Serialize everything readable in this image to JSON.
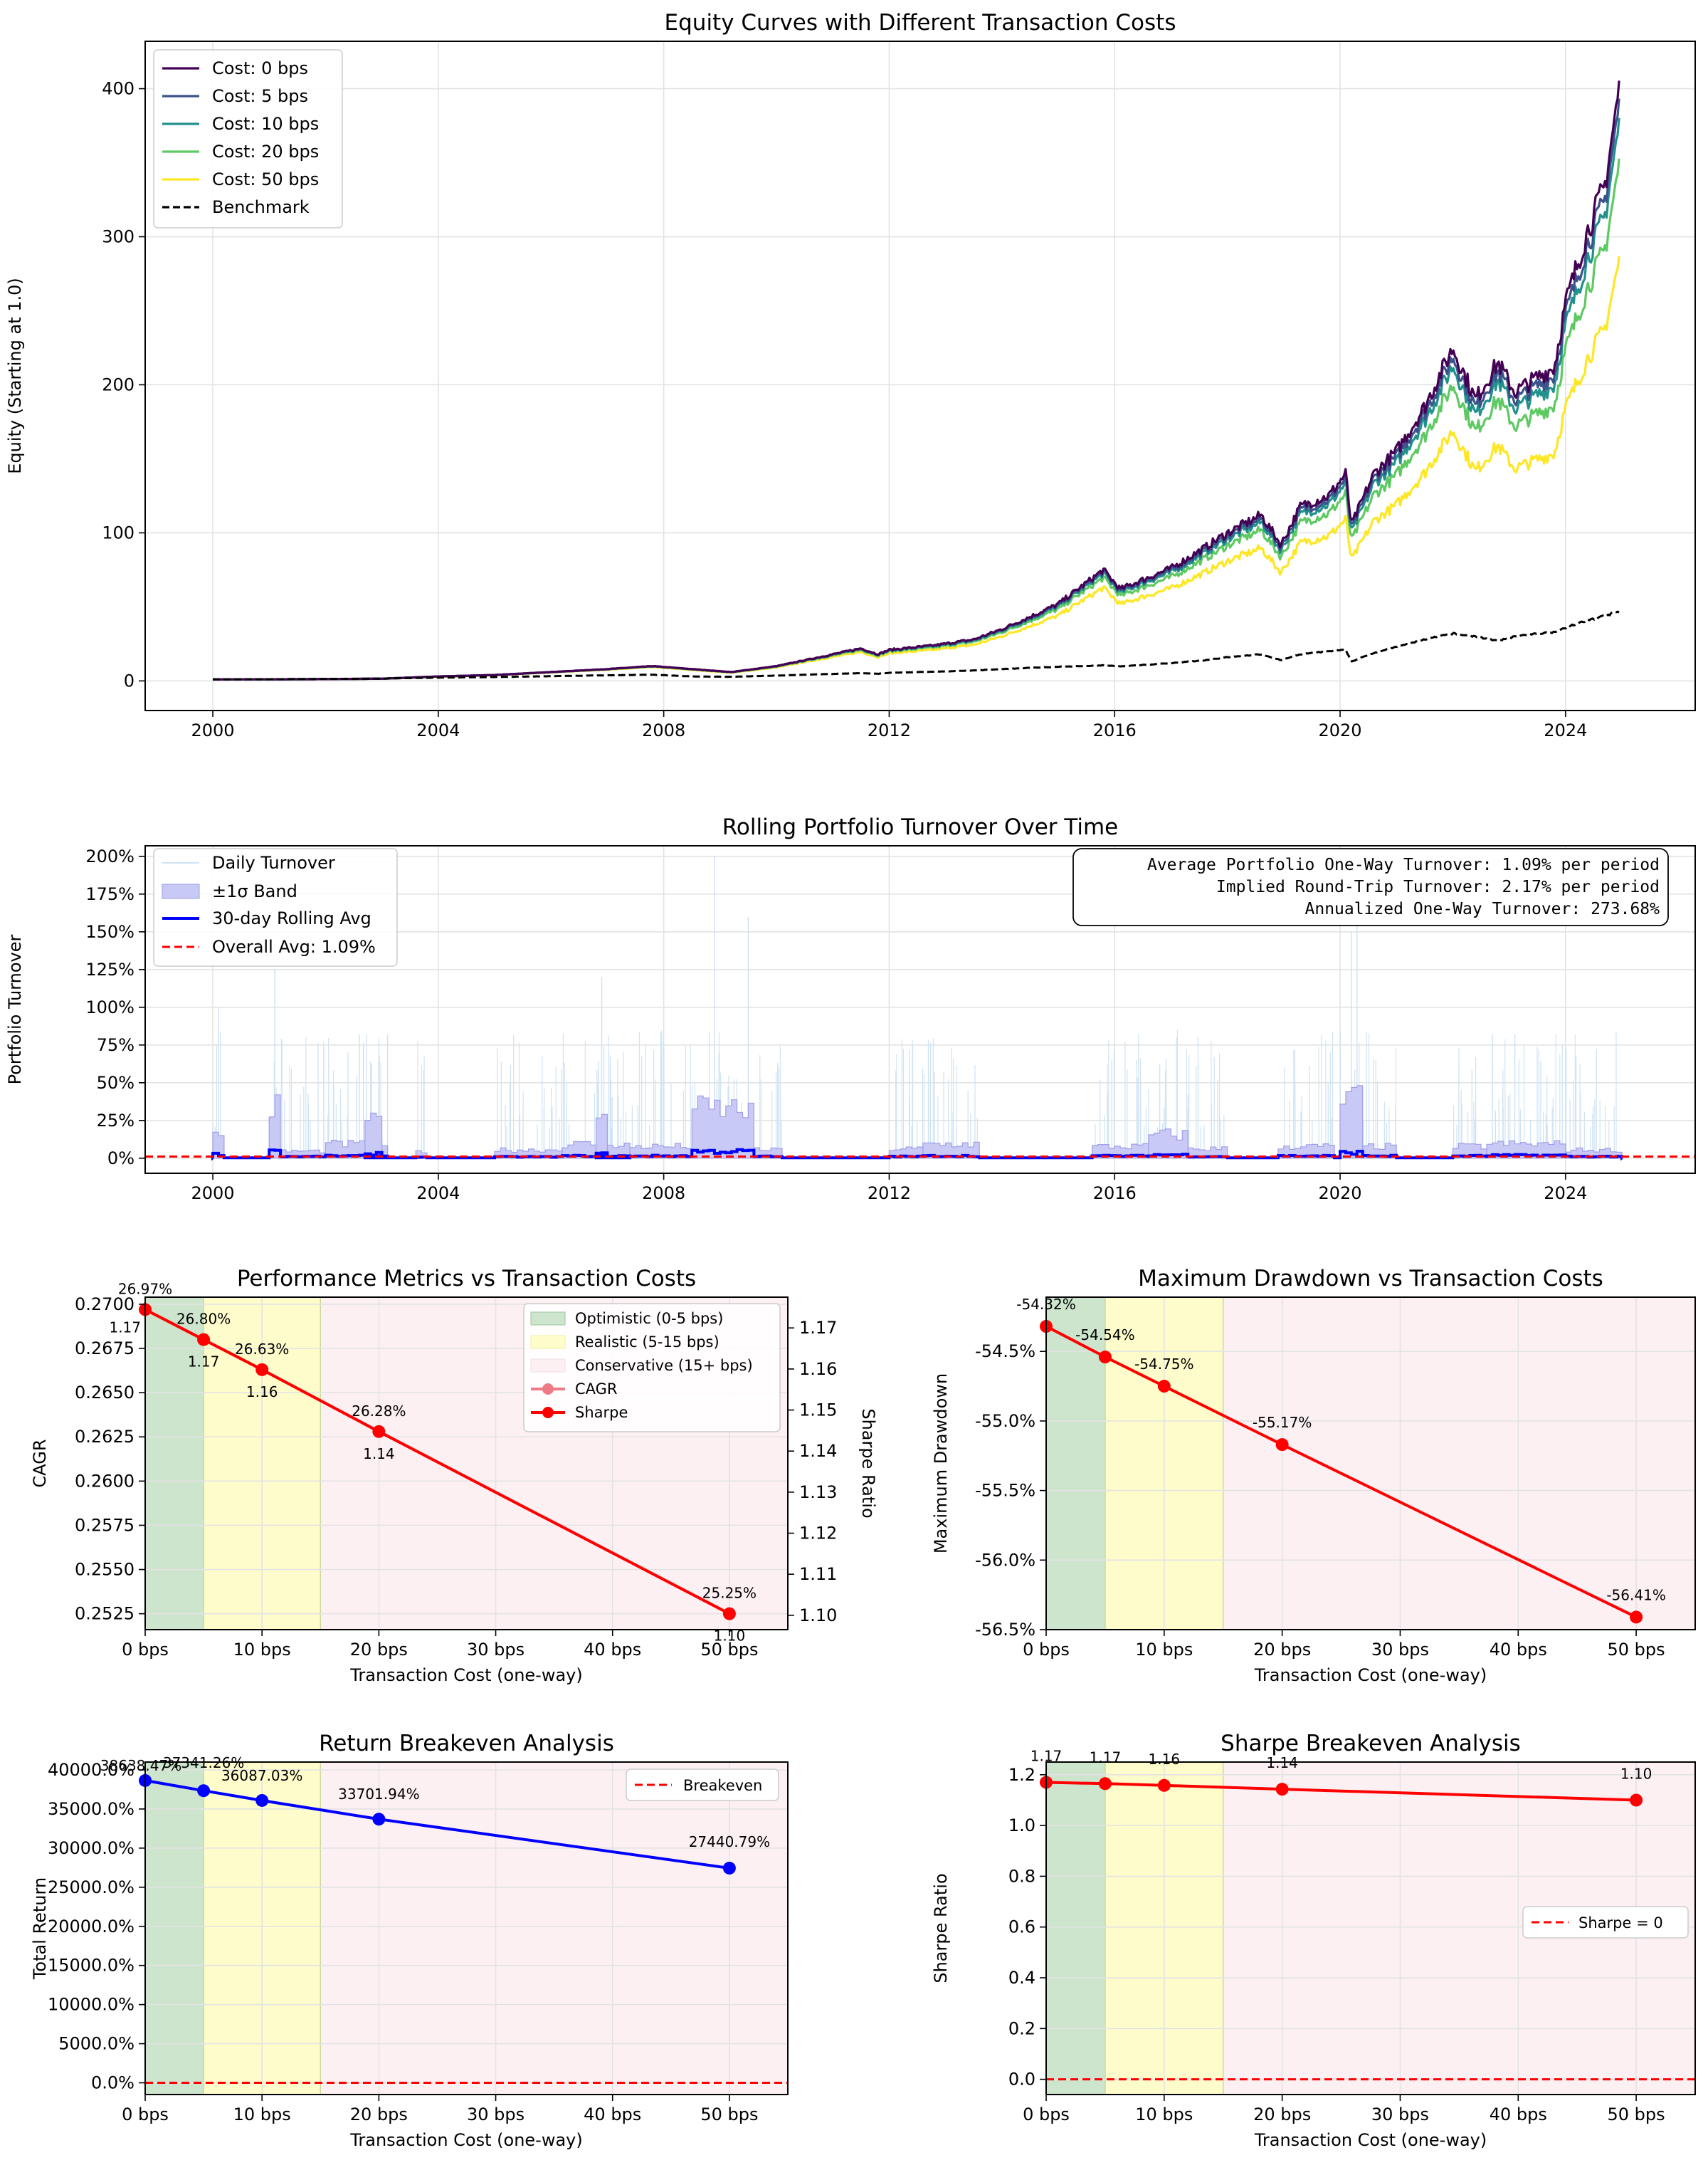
{
  "chart_data": [
    {
      "type": "line",
      "title": "Equity Curves with Different Transaction Costs",
      "xlabel": "",
      "ylabel": "Equity (Starting at 1.0)",
      "xlim": [
        1998.8,
        2026.3
      ],
      "ylim": [
        -20,
        432
      ],
      "x_ticks": [
        2000,
        2004,
        2008,
        2012,
        2016,
        2020,
        2024
      ],
      "x_tick_labels": [
        "2000",
        "2004",
        "2008",
        "2012",
        "2016",
        "2020",
        "2024"
      ],
      "y_ticks": [
        0,
        100,
        200,
        300,
        400
      ],
      "y_tick_labels": [
        "0",
        "100",
        "200",
        "300",
        "400"
      ],
      "grid": true,
      "legend_position": "top-left",
      "series": [
        {
          "name": "Cost: 0 bps",
          "color": "#440154",
          "final": 400
        },
        {
          "name": "Cost: 5 bps",
          "color": "#3b528b",
          "final": 388
        },
        {
          "name": "Cost: 10 bps",
          "color": "#21918c",
          "final": 375
        },
        {
          "name": "Cost: 20 bps",
          "color": "#5ec962",
          "final": 348
        },
        {
          "name": "Cost: 50 bps",
          "color": "#fde725",
          "final": 283
        },
        {
          "name": "Benchmark",
          "color": "#000000",
          "dash": true,
          "final": 47
        }
      ],
      "key_points": {
        "x": [
          2000,
          2002,
          2003,
          2004,
          2005,
          2006,
          2007,
          2007.8,
          2008.5,
          2009.2,
          2010,
          2010.5,
          2011.5,
          2011.8,
          2012,
          2012.8,
          2013.5,
          2014,
          2014.6,
          2015,
          2015.8,
          2016.1,
          2016.6,
          2017,
          2017.6,
          2018,
          2018.6,
          2018.95,
          2019.3,
          2019.8,
          2020.1,
          2020.2,
          2020.6,
          2021,
          2021.5,
          2022,
          2022.4,
          2022.8,
          2023.1,
          2023.5,
          2023.8,
          2024,
          2024.4,
          2024.7,
          2024.95
        ],
        "base": [
          1,
          1.2,
          1.5,
          3,
          4,
          6,
          8,
          10,
          8,
          6,
          10,
          14,
          22,
          18,
          21,
          24,
          28,
          35,
          45,
          52,
          75,
          62,
          70,
          76,
          90,
          100,
          112,
          92,
          118,
          125,
          140,
          105,
          140,
          155,
          185,
          225,
          190,
          215,
          195,
          205,
          212,
          255,
          305,
          335,
          400
        ],
        "bench": [
          1,
          1.3,
          1.6,
          2.2,
          2.6,
          3.2,
          3.8,
          4.2,
          3,
          2.8,
          3.6,
          4.2,
          5.2,
          4.8,
          5.5,
          6.2,
          7,
          8,
          9,
          9.5,
          10.5,
          9.8,
          11,
          12,
          14,
          16,
          18,
          14,
          18,
          20,
          21,
          13,
          19,
          23,
          28,
          32,
          30,
          27,
          30,
          32,
          33,
          36,
          41,
          44,
          47
        ]
      }
    },
    {
      "type": "line",
      "title": "Rolling Portfolio Turnover Over Time",
      "xlabel": "",
      "ylabel": "Portfolio Turnover",
      "xlim": [
        1998.8,
        2026.3
      ],
      "ylim": [
        -0.1,
        2.07
      ],
      "x_ticks": [
        2000,
        2004,
        2008,
        2012,
        2016,
        2020,
        2024
      ],
      "x_tick_labels": [
        "2000",
        "2004",
        "2008",
        "2012",
        "2016",
        "2020",
        "2024"
      ],
      "y_ticks": [
        0,
        0.25,
        0.5,
        0.75,
        1.0,
        1.25,
        1.5,
        1.75,
        2.0
      ],
      "y_tick_labels": [
        "0%",
        "25%",
        "50%",
        "75%",
        "100%",
        "125%",
        "150%",
        "175%",
        "200%"
      ],
      "grid": true,
      "legend_position": "top-left",
      "legend": [
        "Daily Turnover",
        "±1σ Band",
        "30-day Rolling Avg",
        "Overall Avg: 1.09%"
      ],
      "overall_avg": 0.0109,
      "annotation": [
        "Average Portfolio One-Way Turnover: 1.09% per period",
        "Implied Round-Trip Turnover: 2.17% per period",
        "Annualized One-Way Turnover: 273.68%"
      ],
      "band_bursts": [
        {
          "x0": 2000.0,
          "x1": 2000.2,
          "band": 0.2,
          "avg": 0.035
        },
        {
          "x0": 2001.0,
          "x1": 2001.2,
          "band": 0.44,
          "avg": 0.07
        },
        {
          "x0": 2001.2,
          "x1": 2002.0,
          "band": 0.06,
          "avg": 0.015
        },
        {
          "x0": 2002.0,
          "x1": 2003.1,
          "band": 0.12,
          "avg": 0.02
        },
        {
          "x0": 2002.7,
          "x1": 2003.0,
          "band": 0.3,
          "avg": 0.04
        },
        {
          "x0": 2003.6,
          "x1": 2003.8,
          "band": 0.06,
          "avg": 0.01
        },
        {
          "x0": 2005.0,
          "x1": 2006.2,
          "band": 0.07,
          "avg": 0.012
        },
        {
          "x0": 2006.2,
          "x1": 2007.4,
          "band": 0.12,
          "avg": 0.02
        },
        {
          "x0": 2006.8,
          "x1": 2007.0,
          "band": 0.32,
          "avg": 0.04
        },
        {
          "x0": 2007.4,
          "x1": 2008.5,
          "band": 0.1,
          "avg": 0.02
        },
        {
          "x0": 2008.5,
          "x1": 2009.6,
          "band": 0.42,
          "avg": 0.06
        },
        {
          "x0": 2009.6,
          "x1": 2010.1,
          "band": 0.07,
          "avg": 0.015
        },
        {
          "x0": 2012.0,
          "x1": 2012.6,
          "band": 0.08,
          "avg": 0.015
        },
        {
          "x0": 2012.6,
          "x1": 2013.6,
          "band": 0.12,
          "avg": 0.02
        },
        {
          "x0": 2015.6,
          "x1": 2016.6,
          "band": 0.1,
          "avg": 0.02
        },
        {
          "x0": 2016.6,
          "x1": 2017.3,
          "band": 0.2,
          "avg": 0.03
        },
        {
          "x0": 2017.3,
          "x1": 2018.0,
          "band": 0.08,
          "avg": 0.015
        },
        {
          "x0": 2018.9,
          "x1": 2019.9,
          "band": 0.1,
          "avg": 0.02
        },
        {
          "x0": 2020.0,
          "x1": 2020.4,
          "band": 0.5,
          "avg": 0.05
        },
        {
          "x0": 2020.4,
          "x1": 2021.0,
          "band": 0.1,
          "avg": 0.02
        },
        {
          "x0": 2022.0,
          "x1": 2022.6,
          "band": 0.1,
          "avg": 0.02
        },
        {
          "x0": 2022.6,
          "x1": 2024.0,
          "band": 0.12,
          "avg": 0.025
        },
        {
          "x0": 2024.0,
          "x1": 2025.0,
          "band": 0.07,
          "avg": 0.015
        }
      ],
      "daily_spikes": [
        {
          "x": 2000.1,
          "v": 1.0
        },
        {
          "x": 2001.1,
          "v": 1.25
        },
        {
          "x": 2002.6,
          "v": 0.82
        },
        {
          "x": 2003.1,
          "v": 0.82
        },
        {
          "x": 2006.9,
          "v": 1.2
        },
        {
          "x": 2008.9,
          "v": 2.0
        },
        {
          "x": 2009.5,
          "v": 1.6
        },
        {
          "x": 2016.8,
          "v": 0.62
        },
        {
          "x": 2020.2,
          "v": 1.5
        },
        {
          "x": 2020.3,
          "v": 2.0
        },
        {
          "x": 2022.7,
          "v": 0.82
        },
        {
          "x": 2023.1,
          "v": 0.82
        }
      ]
    },
    {
      "type": "line",
      "title": "Performance Metrics vs Transaction Costs",
      "xlabel": "Transaction Cost (one-way)",
      "ylabel": "CAGR",
      "y2label": "Sharpe Ratio",
      "xlim": [
        0,
        55
      ],
      "ylim": [
        0.2516,
        0.2704
      ],
      "y2lim": [
        1.0965,
        1.1775
      ],
      "x_ticks": [
        0,
        10,
        20,
        30,
        40,
        50
      ],
      "x_tick_labels": [
        "0 bps",
        "10 bps",
        "20 bps",
        "30 bps",
        "40 bps",
        "50 bps"
      ],
      "y_ticks": [
        0.2525,
        0.255,
        0.2575,
        0.26,
        0.2625,
        0.265,
        0.2675,
        0.27
      ],
      "y_tick_labels": [
        "0.2525",
        "0.2550",
        "0.2575",
        "0.2600",
        "0.2625",
        "0.2650",
        "0.2675",
        "0.2700"
      ],
      "y2_ticks": [
        1.1,
        1.11,
        1.12,
        1.13,
        1.14,
        1.15,
        1.16,
        1.17
      ],
      "y2_tick_labels": [
        "1.10",
        "1.11",
        "1.12",
        "1.13",
        "1.14",
        "1.15",
        "1.16",
        "1.17"
      ],
      "regions": [
        {
          "name": "Optimistic (0-5 bps)",
          "x0": 0,
          "x1": 5,
          "color": "#cde4cd"
        },
        {
          "name": "Realistic (5-15 bps)",
          "x0": 5,
          "x1": 15,
          "color": "#fefccb"
        },
        {
          "name": "Conservative (15+ bps)",
          "x0": 15,
          "x1": 55,
          "color": "#fdf0f3"
        }
      ],
      "x": [
        0,
        5,
        10,
        20,
        50
      ],
      "series": [
        {
          "name": "CAGR",
          "color": "#ee7a86",
          "values": [
            0.2697,
            0.268,
            0.2663,
            0.2628,
            0.2525
          ],
          "labels": [
            "26.97%",
            "26.80%",
            "26.63%",
            "26.28%",
            "25.25%"
          ]
        },
        {
          "name": "Sharpe",
          "color": "#ff0000",
          "values": [
            1.17,
            1.17,
            1.16,
            1.14,
            1.1
          ],
          "labels": [
            "1.17",
            "1.17",
            "1.16",
            "1.14",
            "1.10"
          ]
        }
      ],
      "legend_position": "top-right",
      "grid": true
    },
    {
      "type": "line",
      "title": "Maximum Drawdown vs Transaction Costs",
      "xlabel": "Transaction Cost (one-way)",
      "ylabel": "Maximum Drawdown",
      "xlim": [
        0,
        55
      ],
      "ylim": [
        -0.565,
        -0.5411
      ],
      "x_ticks": [
        0,
        10,
        20,
        30,
        40,
        50
      ],
      "x_tick_labels": [
        "0 bps",
        "10 bps",
        "20 bps",
        "30 bps",
        "40 bps",
        "50 bps"
      ],
      "y_ticks": [
        -0.565,
        -0.56,
        -0.555,
        -0.55,
        -0.545
      ],
      "y_tick_labels": [
        "-56.5%",
        "-56.0%",
        "-55.5%",
        "-55.0%",
        "-54.5%"
      ],
      "regions": [
        {
          "x0": 0,
          "x1": 5,
          "color": "#cde4cd"
        },
        {
          "x0": 5,
          "x1": 15,
          "color": "#fefccb"
        },
        {
          "x0": 15,
          "x1": 55,
          "color": "#fdf0f3"
        }
      ],
      "x": [
        0,
        5,
        10,
        20,
        50
      ],
      "series": [
        {
          "name": "Max Drawdown",
          "color": "#ff0000",
          "values": [
            -0.5432,
            -0.5454,
            -0.5475,
            -0.5517,
            -0.5641
          ],
          "labels": [
            "-54.32%",
            "-54.54%",
            "-54.75%",
            "-55.17%",
            "-56.41%"
          ]
        }
      ],
      "grid": true
    },
    {
      "type": "line",
      "title": "Return Breakeven Analysis",
      "xlabel": "Transaction Cost (one-way)",
      "ylabel": "Total Return",
      "xlim": [
        0,
        55
      ],
      "ylim": [
        -1500,
        41000
      ],
      "x_ticks": [
        0,
        10,
        20,
        30,
        40,
        50
      ],
      "x_tick_labels": [
        "0 bps",
        "10 bps",
        "20 bps",
        "30 bps",
        "40 bps",
        "50 bps"
      ],
      "y_ticks": [
        0,
        5000,
        10000,
        15000,
        20000,
        25000,
        30000,
        35000,
        40000
      ],
      "y_tick_labels": [
        "0.0%",
        "5000.0%",
        "10000.0%",
        "15000.0%",
        "20000.0%",
        "25000.0%",
        "30000.0%",
        "35000.0%",
        "40000.0%"
      ],
      "regions": [
        {
          "x0": 0,
          "x1": 5,
          "color": "#cde4cd"
        },
        {
          "x0": 5,
          "x1": 15,
          "color": "#fefccb"
        },
        {
          "x0": 15,
          "x1": 55,
          "color": "#fdf0f3"
        }
      ],
      "x": [
        0,
        5,
        10,
        20,
        50
      ],
      "series": [
        {
          "name": "Total Return",
          "color": "#0000ff",
          "values": [
            38638.47,
            37341.26,
            36087.03,
            33701.94,
            27440.79
          ],
          "labels": [
            "38638.47%",
            "37341.26%",
            "36087.03%",
            "33701.94%",
            "27440.79%"
          ]
        }
      ],
      "reference": {
        "name": "Breakeven",
        "value": 0,
        "color": "#ff0000"
      },
      "legend_position": "top-right",
      "grid": true
    },
    {
      "type": "line",
      "title": "Sharpe Breakeven Analysis",
      "xlabel": "Transaction Cost (one-way)",
      "ylabel": "Sharpe Ratio",
      "xlim": [
        0,
        55
      ],
      "ylim": [
        -0.06,
        1.25
      ],
      "x_ticks": [
        0,
        10,
        20,
        30,
        40,
        50
      ],
      "x_tick_labels": [
        "0 bps",
        "10 bps",
        "20 bps",
        "30 bps",
        "40 bps",
        "50 bps"
      ],
      "y_ticks": [
        0,
        0.2,
        0.4,
        0.6,
        0.8,
        1.0,
        1.2
      ],
      "y_tick_labels": [
        "0.0",
        "0.2",
        "0.4",
        "0.6",
        "0.8",
        "1.0",
        "1.2"
      ],
      "regions": [
        {
          "x0": 0,
          "x1": 5,
          "color": "#cde4cd"
        },
        {
          "x0": 5,
          "x1": 15,
          "color": "#fefccb"
        },
        {
          "x0": 15,
          "x1": 55,
          "color": "#fdf0f3"
        }
      ],
      "x": [
        0,
        5,
        10,
        20,
        50
      ],
      "series": [
        {
          "name": "Sharpe",
          "color": "#ff0000",
          "values": [
            1.17,
            1.165,
            1.158,
            1.143,
            1.1
          ],
          "labels": [
            "1.17",
            "1.17",
            "1.16",
            "1.14",
            "1.10"
          ]
        }
      ],
      "reference": {
        "name": "Sharpe = 0",
        "value": 0,
        "color": "#ff0000"
      },
      "legend_position": "center-right",
      "grid": true
    }
  ]
}
